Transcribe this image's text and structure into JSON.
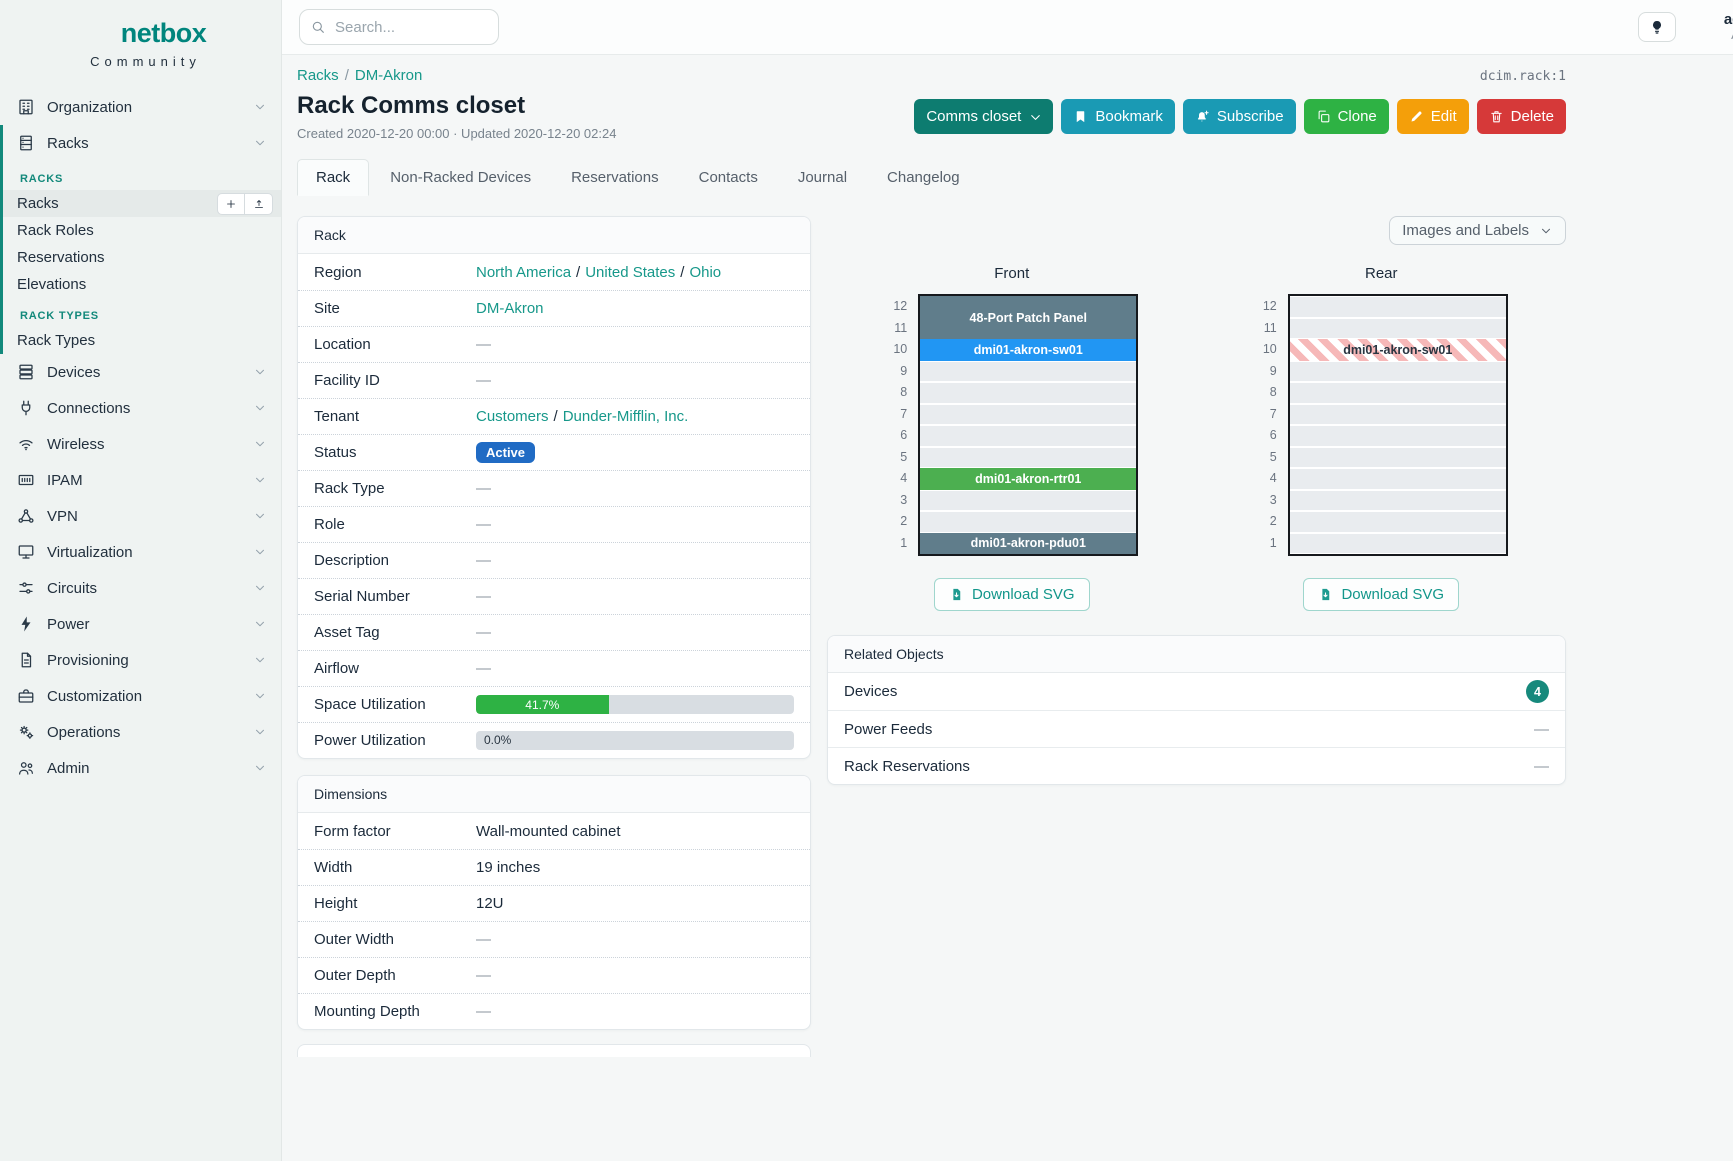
{
  "brand": {
    "name": "netbox",
    "tagline": "Community"
  },
  "topbar": {
    "search_placeholder": "Search...",
    "user_name": "admin",
    "user_role": "Admin"
  },
  "sidebar": {
    "top_groups": [
      {
        "label": "Organization",
        "icon": "building-icon"
      }
    ],
    "racks_group": {
      "label": "Racks",
      "icon": "rack-icon"
    },
    "racks_sections": [
      {
        "title": "RACKS",
        "items": [
          {
            "label": "Racks",
            "active": true,
            "has_buttons": true
          },
          {
            "label": "Rack Roles"
          },
          {
            "label": "Reservations"
          },
          {
            "label": "Elevations"
          }
        ]
      },
      {
        "title": "RACK TYPES",
        "items": [
          {
            "label": "Rack Types"
          }
        ]
      }
    ],
    "bottom_groups": [
      {
        "label": "Devices",
        "icon": "devices-icon"
      },
      {
        "label": "Connections",
        "icon": "plug-icon"
      },
      {
        "label": "Wireless",
        "icon": "wifi-icon"
      },
      {
        "label": "IPAM",
        "icon": "ipam-icon"
      },
      {
        "label": "VPN",
        "icon": "vpn-icon"
      },
      {
        "label": "Virtualization",
        "icon": "monitor-icon"
      },
      {
        "label": "Circuits",
        "icon": "circuits-icon"
      },
      {
        "label": "Power",
        "icon": "power-icon"
      },
      {
        "label": "Provisioning",
        "icon": "document-icon"
      },
      {
        "label": "Customization",
        "icon": "briefcase-icon"
      },
      {
        "label": "Operations",
        "icon": "gears-icon"
      },
      {
        "label": "Admin",
        "icon": "users-icon"
      }
    ]
  },
  "header": {
    "breadcrumb": [
      "Racks",
      "DM-Akron"
    ],
    "object_id": "dcim.rack:1",
    "title": "Rack Comms closet",
    "meta": "Created 2020-12-20 00:00 · Updated 2020-12-20 02:24",
    "actions": {
      "select": "Comms closet",
      "bookmark": "Bookmark",
      "subscribe": "Subscribe",
      "clone": "Clone",
      "edit": "Edit",
      "delete": "Delete"
    }
  },
  "tabs": [
    {
      "label": "Rack",
      "active": true
    },
    {
      "label": "Non-Racked Devices"
    },
    {
      "label": "Reservations"
    },
    {
      "label": "Contacts"
    },
    {
      "label": "Journal"
    },
    {
      "label": "Changelog"
    }
  ],
  "rack_panel": {
    "title": "Rack",
    "rows": [
      {
        "label": "Region",
        "type": "links",
        "links": [
          "North America",
          "United States",
          "Ohio"
        ]
      },
      {
        "label": "Site",
        "type": "links",
        "links": [
          "DM-Akron"
        ]
      },
      {
        "label": "Location",
        "type": "dash",
        "value": "—"
      },
      {
        "label": "Facility ID",
        "type": "dash",
        "value": "—"
      },
      {
        "label": "Tenant",
        "type": "links",
        "links": [
          "Customers",
          "Dunder-Mifflin, Inc."
        ]
      },
      {
        "label": "Status",
        "type": "badge",
        "value": "Active",
        "color": "#206bc4"
      },
      {
        "label": "Rack Type",
        "type": "dash",
        "value": "—"
      },
      {
        "label": "Role",
        "type": "dash",
        "value": "—"
      },
      {
        "label": "Description",
        "type": "dash",
        "value": "—"
      },
      {
        "label": "Serial Number",
        "type": "dash",
        "value": "—"
      },
      {
        "label": "Asset Tag",
        "type": "dash",
        "value": "—"
      },
      {
        "label": "Airflow",
        "type": "dash",
        "value": "—"
      },
      {
        "label": "Space Utilization",
        "type": "progress",
        "percent": 41.7,
        "display": "41.7%",
        "color": "#2eb244"
      },
      {
        "label": "Power Utilization",
        "type": "progress",
        "percent": 0,
        "display": "0.0%",
        "color": "#2eb244"
      }
    ]
  },
  "dimensions_panel": {
    "title": "Dimensions",
    "rows": [
      {
        "label": "Form factor",
        "type": "text",
        "value": "Wall-mounted cabinet"
      },
      {
        "label": "Width",
        "type": "text",
        "value": "19 inches"
      },
      {
        "label": "Height",
        "type": "text",
        "value": "12U"
      },
      {
        "label": "Outer Width",
        "type": "dash",
        "value": "—"
      },
      {
        "label": "Outer Depth",
        "type": "dash",
        "value": "—"
      },
      {
        "label": "Mounting Depth",
        "type": "dash",
        "value": "—"
      }
    ]
  },
  "elevations": {
    "view_toggle_label": "Images and Labels",
    "download_label": "Download SVG",
    "units": 12,
    "front": {
      "title": "Front",
      "devices": [
        {
          "top_unit": 12,
          "u_height": 2,
          "label": "48-Port Patch Panel",
          "color": "#607d8b"
        },
        {
          "top_unit": 10,
          "u_height": 1,
          "label": "dmi01-akron-sw01",
          "color": "#2196f3"
        },
        {
          "top_unit": 4,
          "u_height": 1,
          "label": "dmi01-akron-rtr01",
          "color": "#4caf50"
        },
        {
          "top_unit": 1,
          "u_height": 1,
          "label": "dmi01-akron-pdu01",
          "color": "#607d8b"
        }
      ]
    },
    "rear": {
      "title": "Rear",
      "devices": [
        {
          "top_unit": 10,
          "u_height": 1,
          "label": "dmi01-akron-sw01",
          "striped": true
        }
      ]
    }
  },
  "related_objects": {
    "title": "Related Objects",
    "rows": [
      {
        "label": "Devices",
        "badge": "4"
      },
      {
        "label": "Power Feeds",
        "dash": "—"
      },
      {
        "label": "Rack Reservations",
        "dash": "—"
      }
    ]
  }
}
